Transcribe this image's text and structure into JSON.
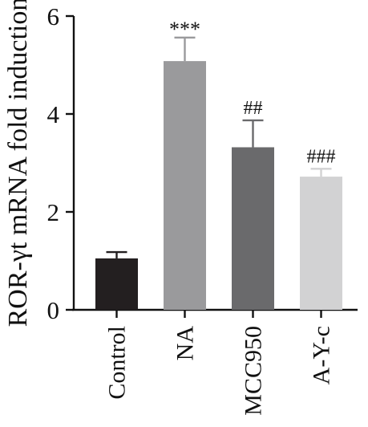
{
  "chart_data": {
    "type": "bar",
    "title": "",
    "xlabel": "",
    "ylabel": "ROR-γt mRNA fold induction",
    "ylim": [
      0,
      6
    ],
    "yticks": [
      0,
      2,
      4,
      6
    ],
    "categories": [
      "Control",
      "NA",
      "MCC950",
      "A-Y-c"
    ],
    "values": [
      1.05,
      5.08,
      3.32,
      2.72
    ],
    "errors": [
      0.13,
      0.48,
      0.55,
      0.16
    ],
    "annotations": [
      "",
      "***",
      "##",
      "###"
    ],
    "colors": [
      "#231f20",
      "#9a9a9c",
      "#6a6a6c",
      "#d2d2d3"
    ],
    "grid": false,
    "legend": "none"
  }
}
